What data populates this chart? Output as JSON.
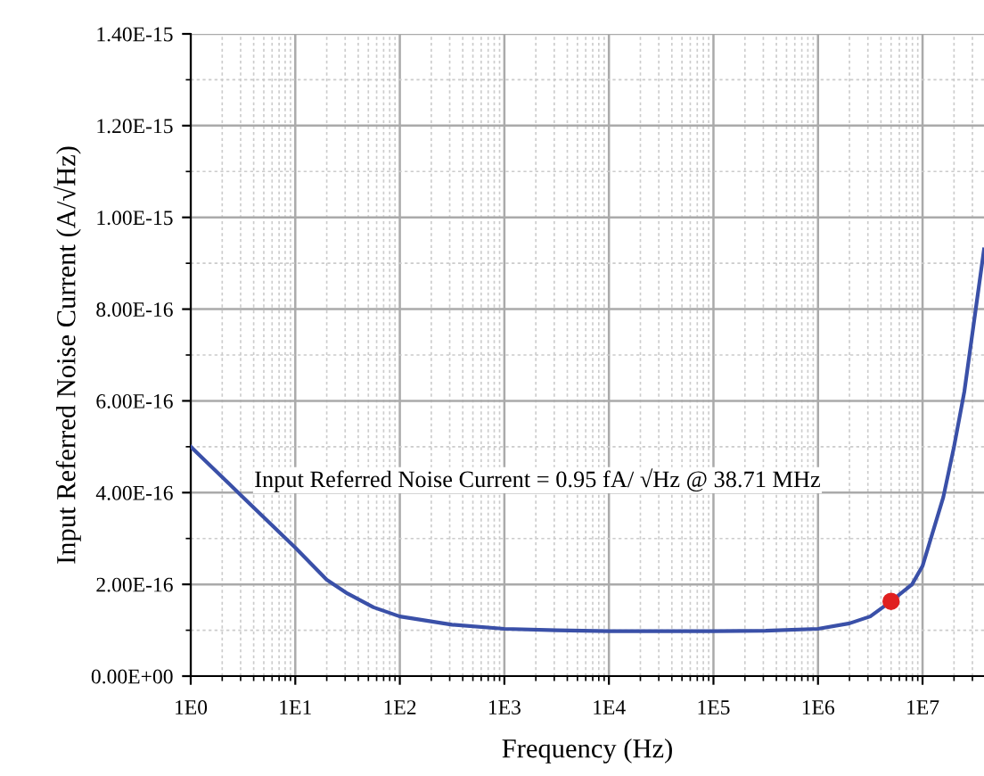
{
  "chart_data": {
    "type": "line",
    "xlabel": "Frequency (Hz)",
    "ylabel": "Input Referred Noise Current (A/√Hz)",
    "log": "x",
    "grid": true,
    "legend": false,
    "annotations": [
      "Input Referred Noise Current = 0.95 fA/ √Hz @ 38.71 MHz"
    ],
    "xlim": [
      1,
      38710000
    ],
    "xticks": [
      {
        "value": 1,
        "label": "1E0"
      },
      {
        "value": 10,
        "label": "1E1"
      },
      {
        "value": 100,
        "label": "1E2"
      },
      {
        "value": 1000,
        "label": "1E3"
      },
      {
        "value": 10000,
        "label": "1E4"
      },
      {
        "value": 100000,
        "label": "1E5"
      },
      {
        "value": 1000000,
        "label": "1E6"
      },
      {
        "value": 10000000,
        "label": "1E7"
      }
    ],
    "ylim": [
      0,
      1.4e-15
    ],
    "yticks": [
      {
        "value": 0,
        "label": "0.00E+00"
      },
      {
        "value": 2e-16,
        "label": "2.00E-16"
      },
      {
        "value": 4e-16,
        "label": "4.00E-16"
      },
      {
        "value": 6e-16,
        "label": "6.00E-16"
      },
      {
        "value": 8e-16,
        "label": "8.00E-16"
      },
      {
        "value": 1e-15,
        "label": "1.00E-15"
      },
      {
        "value": 1.2e-15,
        "label": "1.20E-15"
      },
      {
        "value": 1.4e-15,
        "label": "1.40E-15"
      }
    ],
    "series": [
      {
        "color": "#3a50a8",
        "marker": "none",
        "line_style": "solid",
        "x": [
          1,
          3.16,
          10,
          20,
          31.6,
          56,
          100,
          316,
          1000,
          3160,
          10000,
          100000,
          316000,
          1000000,
          2000000,
          3160000,
          5000000,
          7940000,
          10000000,
          15800000,
          20000000,
          25100000,
          38710000
        ],
        "values": [
          5e-16,
          3.9e-16,
          2.8e-16,
          2.1e-16,
          1.8e-16,
          1.5e-16,
          1.3e-16,
          1.12e-16,
          1.03e-16,
          1e-16,
          9.8e-17,
          9.8e-17,
          9.9e-17,
          1.03e-16,
          1.15e-16,
          1.3e-16,
          1.63e-16,
          2e-16,
          2.4e-16,
          3.9e-16,
          5e-16,
          6.2e-16,
          9.3e-16
        ]
      },
      {
        "type": "scatter",
        "color": "#e02020",
        "marker": "circle",
        "x": [
          5000000
        ],
        "values": [
          1.63e-16
        ]
      }
    ]
  }
}
